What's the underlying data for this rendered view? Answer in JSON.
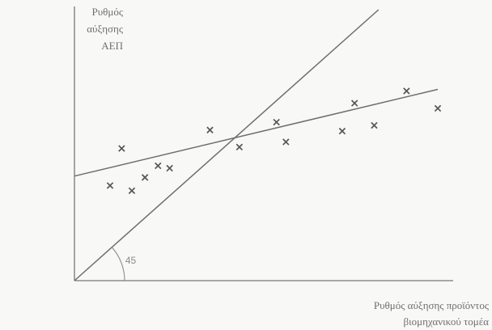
{
  "chart_data": {
    "type": "scatter",
    "y_axis_label": [
      "Ρυθμός",
      "αύξησης",
      "ΑΕΠ"
    ],
    "x_axis_label": [
      "Ρυθμός αύξησης προϊόντος",
      "βιομηχανικού τομέα"
    ],
    "grid": false,
    "xlim": [
      0,
      100
    ],
    "ylim": [
      0,
      100
    ],
    "points": [
      {
        "x": 9.8,
        "y": 35.1
      },
      {
        "x": 13.0,
        "y": 48.8
      },
      {
        "x": 15.8,
        "y": 33.2
      },
      {
        "x": 19.4,
        "y": 38.1
      },
      {
        "x": 23.0,
        "y": 42.4
      },
      {
        "x": 26.2,
        "y": 41.5
      },
      {
        "x": 37.3,
        "y": 55.6
      },
      {
        "x": 45.4,
        "y": 49.3
      },
      {
        "x": 55.6,
        "y": 58.5
      },
      {
        "x": 58.2,
        "y": 51.2
      },
      {
        "x": 73.7,
        "y": 55.2
      },
      {
        "x": 77.1,
        "y": 65.5
      },
      {
        "x": 82.5,
        "y": 57.3
      },
      {
        "x": 91.4,
        "y": 70.0
      },
      {
        "x": 100.0,
        "y": 63.6
      }
    ],
    "lines": [
      {
        "x": [
          0,
          100
        ],
        "y": [
          38.6,
          70.6
        ]
      },
      {
        "x": [
          0,
          83.7
        ],
        "y": [
          0,
          100
        ]
      }
    ],
    "annotations": [
      {
        "text": "45",
        "x": 14.0,
        "y": 6.2
      }
    ]
  }
}
